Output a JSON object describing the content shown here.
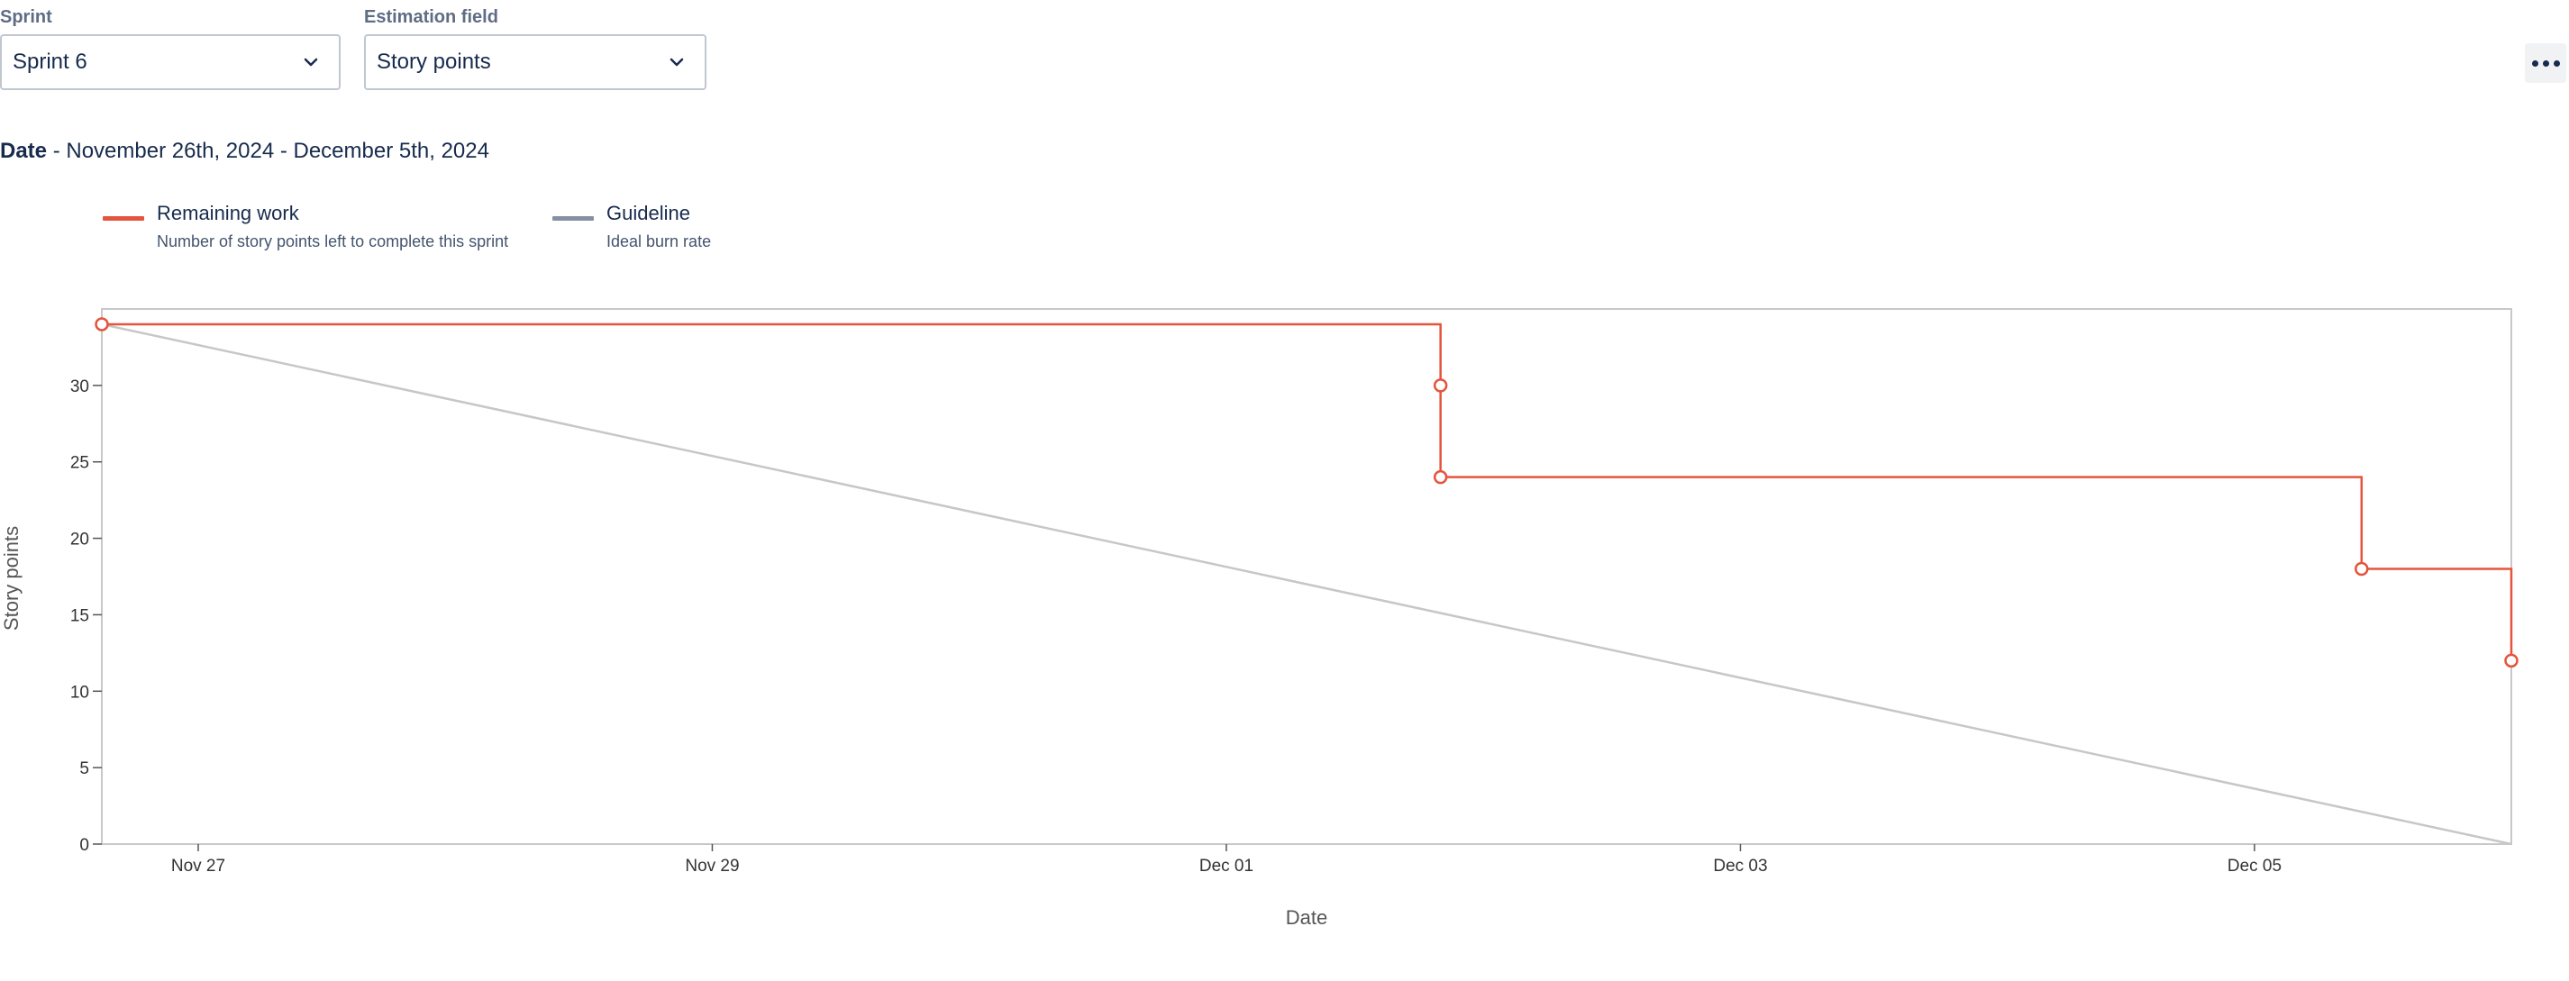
{
  "filters": {
    "sprint_label": "Sprint",
    "sprint_value": "Sprint 6",
    "estimation_label": "Estimation field",
    "estimation_value": "Story points"
  },
  "date_range": {
    "label": "Date",
    "value": " - November 26th, 2024 - December 5th, 2024"
  },
  "legend": [
    {
      "title": "Remaining work",
      "subtitle": "Number of story points left to complete this sprint",
      "color": "#e5543c"
    },
    {
      "title": "Guideline",
      "subtitle": "Ideal burn rate",
      "color": "#8590a2"
    }
  ],
  "icons": {
    "select_chevron": "chevron-down-icon",
    "more_actions": "more-horizontal-icon"
  },
  "chart_data": {
    "type": "line",
    "title": "",
    "xlabel": "Date",
    "ylabel": "Story points",
    "x_range": [
      "2024-11-26T15:00",
      "2024-12-05T23:59"
    ],
    "ylim": [
      0,
      35
    ],
    "y_ticks": [
      0,
      5,
      10,
      15,
      20,
      25,
      30
    ],
    "x_ticks": [
      {
        "date": "2024-11-27",
        "label": "Nov 27"
      },
      {
        "date": "2024-11-29",
        "label": "Nov 29"
      },
      {
        "date": "2024-12-01",
        "label": "Dec 01"
      },
      {
        "date": "2024-12-03",
        "label": "Dec 03"
      },
      {
        "date": "2024-12-05",
        "label": "Dec 05"
      }
    ],
    "grid": false,
    "legend_position": "top-left",
    "series": [
      {
        "name": "Remaining work",
        "style": "step",
        "color": "#e5543c",
        "points": [
          {
            "x": "2024-11-26T15:00",
            "y": 34
          },
          {
            "x": "2024-12-01T20:00",
            "y": 30
          },
          {
            "x": "2024-12-01T20:00",
            "y": 24
          },
          {
            "x": "2024-12-05T10:00",
            "y": 18
          },
          {
            "x": "2024-12-05T23:59",
            "y": 12
          }
        ]
      },
      {
        "name": "Guideline",
        "style": "line",
        "color": "#c7c7c7",
        "points": [
          {
            "x": "2024-11-26T15:00",
            "y": 34
          },
          {
            "x": "2024-12-05T23:59",
            "y": 0
          }
        ]
      }
    ]
  }
}
